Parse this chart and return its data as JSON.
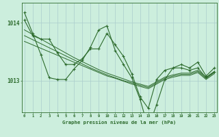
{
  "hours": [
    0,
    1,
    2,
    3,
    4,
    5,
    6,
    7,
    8,
    9,
    10,
    11,
    12,
    13,
    14,
    15,
    16,
    17,
    18,
    19,
    20,
    21,
    22,
    23
  ],
  "jagged_line": [
    1014.18,
    1013.82,
    1013.45,
    1013.05,
    1013.02,
    1013.02,
    1013.2,
    1013.35,
    1013.58,
    1013.88,
    1013.95,
    1013.52,
    1013.28,
    1013.05,
    1012.68,
    1012.18,
    1012.58,
    1013.02,
    1013.22,
    1013.22,
    1013.18,
    1013.22,
    1013.05,
    1013.15
  ],
  "trend1": [
    1013.88,
    1013.8,
    1013.72,
    1013.64,
    1013.56,
    1013.48,
    1013.4,
    1013.33,
    1013.26,
    1013.19,
    1013.13,
    1013.08,
    1013.03,
    1012.98,
    1012.94,
    1012.9,
    1012.98,
    1013.06,
    1013.1,
    1013.13,
    1013.13,
    1013.18,
    1013.06,
    1013.16
  ],
  "trend2": [
    1013.78,
    1013.71,
    1013.64,
    1013.57,
    1013.5,
    1013.43,
    1013.36,
    1013.29,
    1013.22,
    1013.16,
    1013.1,
    1013.05,
    1013.0,
    1012.96,
    1012.92,
    1012.88,
    1012.96,
    1013.04,
    1013.08,
    1013.11,
    1013.11,
    1013.16,
    1013.04,
    1013.14
  ],
  "trend3": [
    1013.68,
    1013.62,
    1013.56,
    1013.5,
    1013.44,
    1013.38,
    1013.32,
    1013.26,
    1013.2,
    1013.14,
    1013.08,
    1013.04,
    1012.99,
    1012.94,
    1012.9,
    1012.86,
    1012.94,
    1013.02,
    1013.06,
    1013.09,
    1013.09,
    1013.14,
    1013.02,
    1013.12
  ],
  "main_line": [
    1014.05,
    1013.78,
    1013.72,
    1013.72,
    1013.48,
    1013.28,
    1013.28,
    1013.38,
    1013.55,
    1013.55,
    1013.82,
    1013.62,
    1013.42,
    1013.12,
    1012.72,
    1012.52,
    1013.02,
    1013.18,
    1013.22,
    1013.28,
    1013.22,
    1013.32,
    1013.08,
    1013.22
  ],
  "line_color": "#2d6b2d",
  "bg_color": "#cceedd",
  "grid_color": "#aacccc",
  "xlabel": "Graphe pression niveau de la mer (hPa)",
  "ylim": [
    1012.45,
    1014.35
  ],
  "yticks": [
    1013,
    1014
  ],
  "label_fontsize": 6
}
